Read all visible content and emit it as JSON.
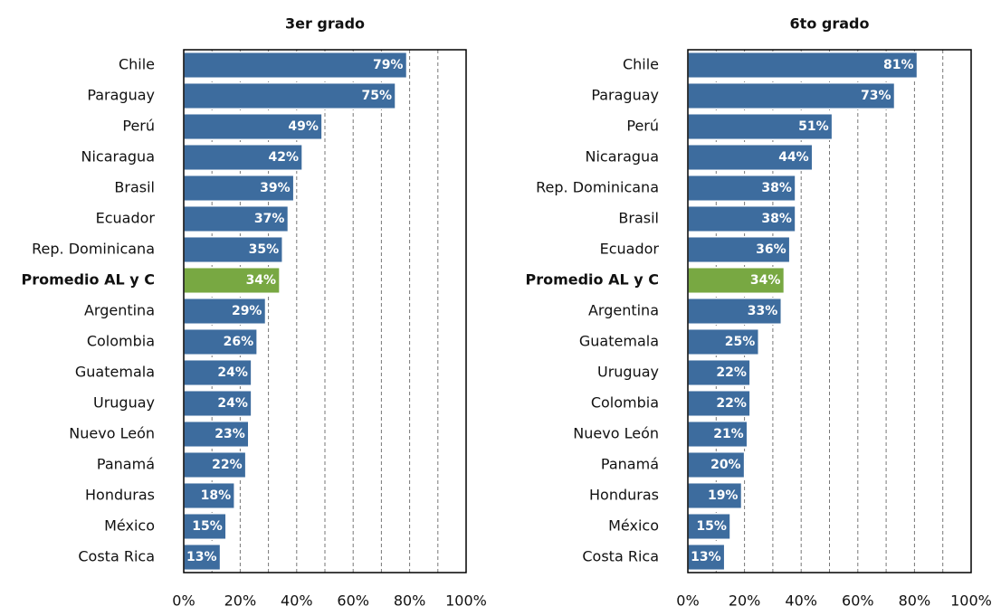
{
  "chart_data": [
    {
      "type": "hbar",
      "title": "3er grado",
      "categories": [
        "Chile",
        "Paraguay",
        "Perú",
        "Nicaragua",
        "Brasil",
        "Ecuador",
        "Rep. Dominicana",
        "Promedio AL y C",
        "Argentina",
        "Colombia",
        "Guatemala",
        "Uruguay",
        "Nuevo León",
        "Panamá",
        "Honduras",
        "México",
        "Costa Rica"
      ],
      "values": [
        79,
        75,
        49,
        42,
        39,
        37,
        35,
        34,
        29,
        26,
        24,
        24,
        23,
        22,
        18,
        15,
        13
      ],
      "value_labels": [
        "79%",
        "75%",
        "49%",
        "42%",
        "39%",
        "37%",
        "35%",
        "34%",
        "29%",
        "26%",
        "24%",
        "24%",
        "23%",
        "22%",
        "18%",
        "15%",
        "13%"
      ],
      "color": "#3d6c9e",
      "colors": [
        "#3d6c9e",
        "#3d6c9e",
        "#3d6c9e",
        "#3d6c9e",
        "#3d6c9e",
        "#3d6c9e",
        "#3d6c9e",
        "#78a842",
        "#3d6c9e",
        "#3d6c9e",
        "#3d6c9e",
        "#3d6c9e",
        "#3d6c9e",
        "#3d6c9e",
        "#3d6c9e",
        "#3d6c9e",
        "#3d6c9e"
      ],
      "xlim": [
        0,
        100
      ],
      "xticks": [
        {
          "value": 0,
          "label": "0%"
        },
        {
          "value": 20,
          "label": "20%"
        },
        {
          "value": 40,
          "label": "40%"
        },
        {
          "value": 60,
          "label": "60%"
        },
        {
          "value": 80,
          "label": "80%"
        },
        {
          "value": 100,
          "label": "100%"
        }
      ],
      "xgrid": [
        10,
        20,
        30,
        40,
        50,
        60,
        70,
        80,
        90
      ]
    },
    {
      "type": "hbar",
      "title": "6to grado",
      "categories": [
        "Chile",
        "Paraguay",
        "Perú",
        "Nicaragua",
        "Rep. Dominicana",
        "Brasil",
        "Ecuador",
        "Promedio AL y C",
        "Argentina",
        "Guatemala",
        "Uruguay",
        "Colombia",
        "Nuevo León",
        "Panamá",
        "Honduras",
        "México",
        "Costa Rica"
      ],
      "values": [
        81,
        73,
        51,
        44,
        38,
        38,
        36,
        34,
        33,
        25,
        22,
        22,
        21,
        20,
        19,
        15,
        13
      ],
      "value_labels": [
        "81%",
        "73%",
        "51%",
        "44%",
        "38%",
        "38%",
        "36%",
        "34%",
        "33%",
        "25%",
        "22%",
        "22%",
        "21%",
        "20%",
        "19%",
        "15%",
        "13%"
      ],
      "color": "#3d6c9e",
      "colors": [
        "#3d6c9e",
        "#3d6c9e",
        "#3d6c9e",
        "#3d6c9e",
        "#3d6c9e",
        "#3d6c9e",
        "#3d6c9e",
        "#78a842",
        "#3d6c9e",
        "#3d6c9e",
        "#3d6c9e",
        "#3d6c9e",
        "#3d6c9e",
        "#3d6c9e",
        "#3d6c9e",
        "#3d6c9e",
        "#3d6c9e"
      ],
      "xlim": [
        0,
        100
      ],
      "xticks": [
        {
          "value": 0,
          "label": "0%"
        },
        {
          "value": 20,
          "label": "20%"
        },
        {
          "value": 40,
          "label": "40%"
        },
        {
          "value": 60,
          "label": "60%"
        },
        {
          "value": 80,
          "label": "80%"
        },
        {
          "value": 100,
          "label": "100%"
        }
      ],
      "xgrid": [
        10,
        20,
        30,
        40,
        50,
        60,
        70,
        80,
        90
      ]
    }
  ]
}
